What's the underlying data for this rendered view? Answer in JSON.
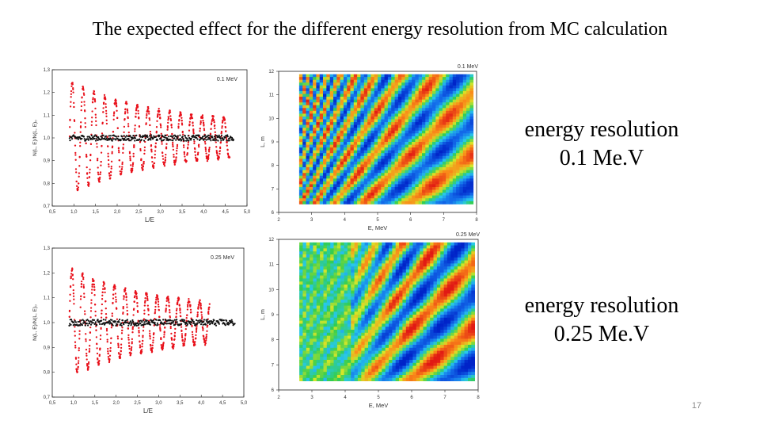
{
  "slide": {
    "title": "The expected effect for the different  energy resolution from MC calculation",
    "page_number": "17",
    "captions": [
      {
        "line1": "energy resolution",
        "line2": "0.1 Me.V"
      },
      {
        "line1": "energy resolution",
        "line2": "0.25 Me.V"
      }
    ]
  },
  "chart_data": [
    {
      "type": "scatter",
      "annotation": "0.1 MeV",
      "xlabel": "L/E",
      "ylabel": "N(L, E)/N(L, E)₀",
      "xlim": [
        0.5,
        5.0
      ],
      "ylim": [
        0.7,
        1.3
      ],
      "xticks": [
        "0,5",
        "1,0",
        "1,5",
        "2,0",
        "2,5",
        "3,0",
        "3,5",
        "4,0",
        "4,5",
        "5,0"
      ],
      "yticks": [
        "0,7",
        "0,8",
        "0,9",
        "1,0",
        "1,1",
        "1,2",
        "1,3"
      ],
      "series": [
        {
          "color": "#e8101a",
          "model": "oscillation",
          "x_range": [
            0.9,
            4.6
          ],
          "amplitude": 0.25,
          "period": 0.25
        },
        {
          "color": "#111111",
          "model": "baseline",
          "x_range": [
            0.9,
            4.7
          ],
          "level": 1.0
        }
      ]
    },
    {
      "type": "heatmap",
      "annotation": "0.1 MeV",
      "xlabel": "E, MeV",
      "ylabel": "L, m",
      "xlim": [
        2,
        8
      ],
      "ylim": [
        6,
        12
      ],
      "xticks": [
        "2",
        "3",
        "4",
        "5",
        "6",
        "7",
        "8"
      ],
      "yticks": [
        "6",
        "7",
        "8",
        "9",
        "10",
        "11",
        "12"
      ]
    },
    {
      "type": "scatter",
      "annotation": "0.25 MeV",
      "xlabel": "L/E",
      "ylabel": "N(L, E)/N(L, E)₀",
      "xlim": [
        0.5,
        5.0
      ],
      "ylim": [
        0.7,
        1.3
      ],
      "xticks": [
        "0,5",
        "1,0",
        "1,5",
        "2,0",
        "2,5",
        "3,0",
        "3,5",
        "4,0",
        "4,5",
        "5,0"
      ],
      "yticks": [
        "0,7",
        "0,8",
        "0,9",
        "1,0",
        "1,1",
        "1,2",
        "1,3"
      ],
      "series": [
        {
          "color": "#e8101a",
          "model": "oscillation",
          "x_range": [
            0.9,
            4.2
          ],
          "amplitude": 0.22,
          "period": 0.25
        },
        {
          "color": "#111111",
          "model": "baseline",
          "x_range": [
            0.9,
            4.8
          ],
          "level": 1.0
        }
      ]
    },
    {
      "type": "heatmap",
      "annotation": "0.25 MeV",
      "xlabel": "E, MeV",
      "ylabel": "L, m",
      "xlim": [
        2,
        8
      ],
      "ylim": [
        6,
        12
      ],
      "xticks": [
        "2",
        "3",
        "4",
        "5",
        "6",
        "7",
        "8"
      ],
      "yticks": [
        "6",
        "7",
        "8",
        "9",
        "10",
        "11",
        "12"
      ]
    }
  ]
}
